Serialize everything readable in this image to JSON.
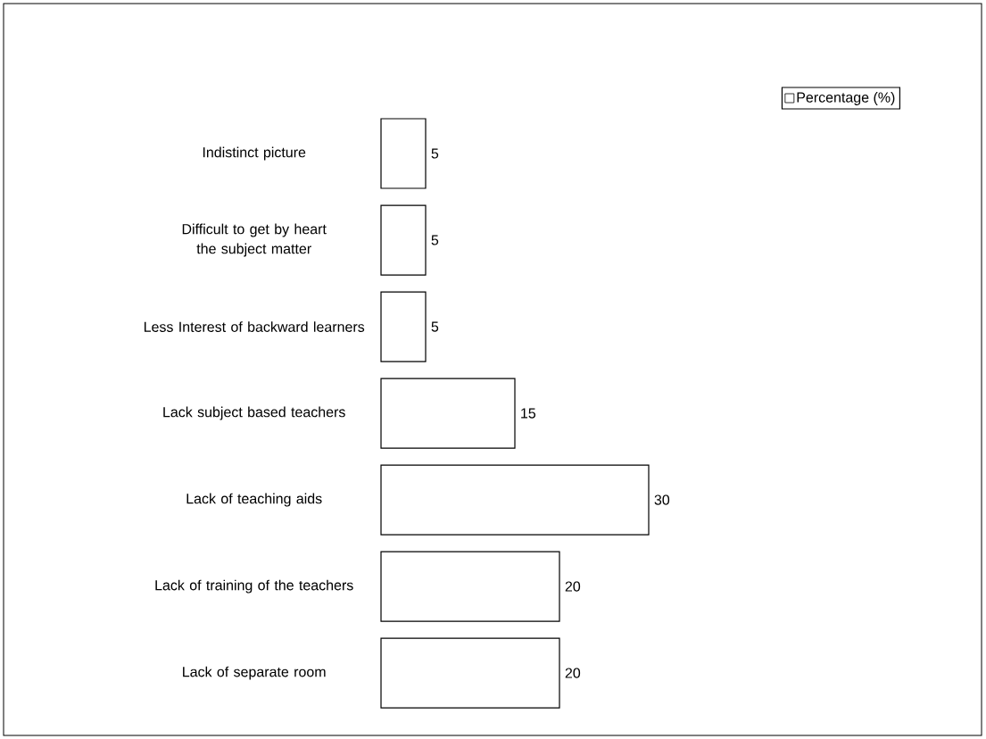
{
  "chart_data": {
    "type": "bar",
    "orientation": "horizontal",
    "categories": [
      "Indistinct picture",
      "Difficult to get by heart the subject matter",
      "Less Interest of backward learners",
      "Lack subject based teachers",
      "Lack of teaching aids",
      "Lack of training of the teachers",
      "Lack of separate room"
    ],
    "series": [
      {
        "name": "Percentage (%)",
        "color": "#ffffff",
        "values": [
          5,
          5,
          5,
          15,
          30,
          20,
          20
        ]
      }
    ],
    "data_labels": true,
    "legend": "top right"
  }
}
